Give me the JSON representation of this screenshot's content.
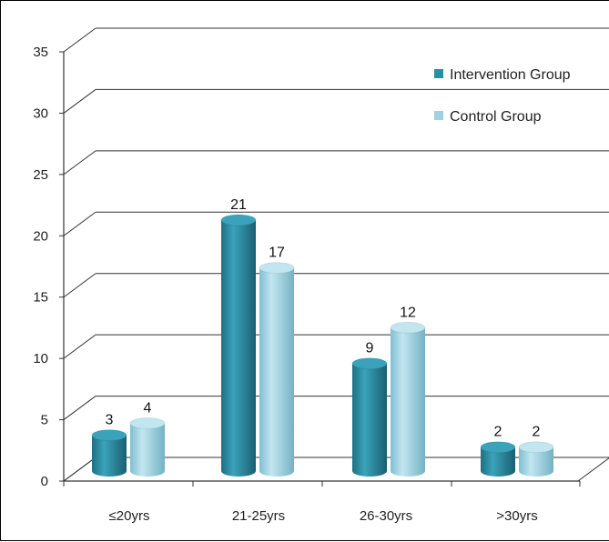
{
  "chart_data": {
    "type": "bar",
    "style": "3d-cylinder",
    "categories": [
      "≤20yrs",
      "21-25yrs",
      "26-30yrs",
      ">30yrs"
    ],
    "series": [
      {
        "name": "Intervention Group",
        "values": [
          3,
          21,
          9,
          2
        ],
        "color": "#2a8ea6"
      },
      {
        "name": "Control Group",
        "values": [
          4,
          17,
          12,
          2
        ],
        "color": "#9cd3e3"
      }
    ],
    "ylim": [
      0,
      35
    ],
    "yticks": [
      0,
      5,
      10,
      15,
      20,
      25,
      30,
      35
    ],
    "grid": true,
    "legend_position": "top-right",
    "data_labels": true,
    "title": "",
    "xlabel": "",
    "ylabel": ""
  }
}
